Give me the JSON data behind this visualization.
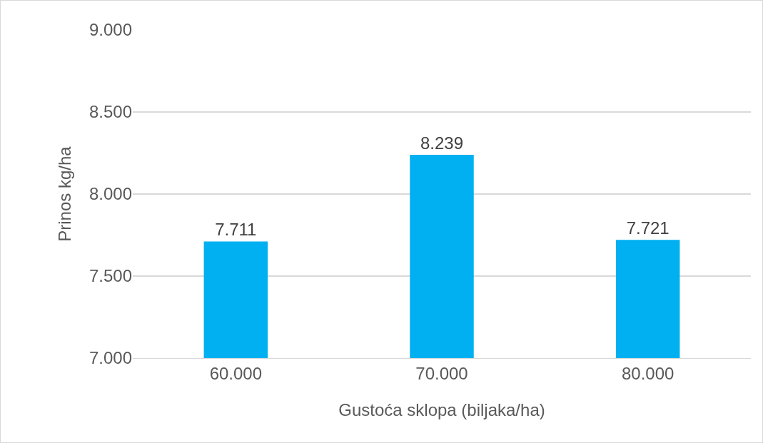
{
  "chart_data": {
    "type": "bar",
    "xlabel": "Gustoća sklopa (biljaka/ha)",
    "ylabel": "Prinos kg/ha",
    "categories": [
      "60.000",
      "70.000",
      "80.000"
    ],
    "values": [
      7711,
      8239,
      7721
    ],
    "value_labels": [
      "7.711",
      "8.239",
      "7.721"
    ],
    "color": "#00b0f0",
    "ylim": [
      7000,
      9000
    ],
    "yticks": [
      {
        "value": 7000,
        "label": "7.000"
      },
      {
        "value": 7500,
        "label": "7.500"
      },
      {
        "value": 8000,
        "label": "8.000"
      },
      {
        "value": 8500,
        "label": "8.500"
      },
      {
        "value": 9000,
        "label": "9.000"
      }
    ],
    "grid": "y",
    "legend": false
  }
}
